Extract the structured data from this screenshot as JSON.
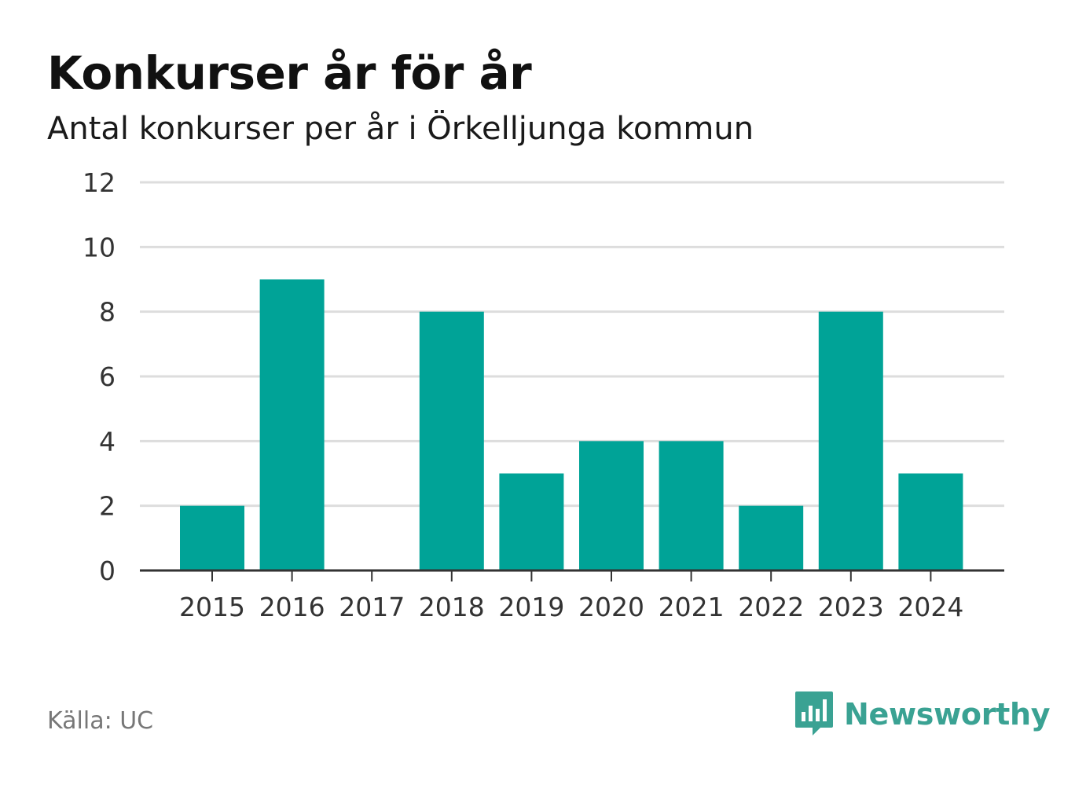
{
  "title": "Konkurser år för år",
  "subtitle": "Antal konkurser per år i Örkelljunga kommun",
  "source": "Källa: UC",
  "brand": "Newsworthy",
  "colors": {
    "bar": "#00a397",
    "grid": "#dddddd",
    "axis": "#333333",
    "brand": "#3aa293"
  },
  "chart_data": {
    "type": "bar",
    "categories": [
      "2015",
      "2016",
      "2017",
      "2018",
      "2019",
      "2020",
      "2021",
      "2022",
      "2023",
      "2024"
    ],
    "values": [
      2,
      9,
      0,
      8,
      3,
      4,
      4,
      2,
      8,
      3
    ],
    "ylim": [
      0,
      12
    ],
    "yticks": [
      0,
      2,
      4,
      6,
      8,
      10,
      12
    ],
    "grid": true,
    "legend": false
  }
}
